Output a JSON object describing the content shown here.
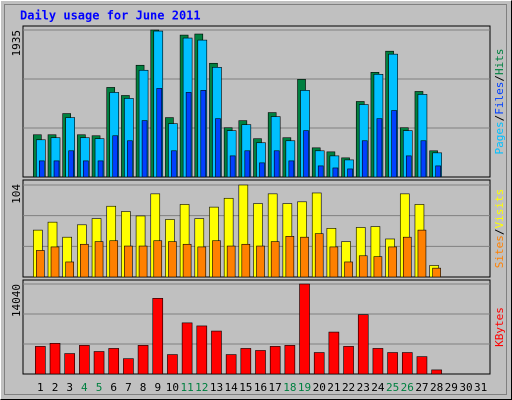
{
  "title": "Daily usage for June 2011",
  "legend_separator": "/",
  "chart_data": [
    {
      "type": "bar",
      "ylim": [
        0,
        1935
      ],
      "yticks": [
        1935
      ],
      "series": [
        {
          "name": "Hits",
          "color": "#008040",
          "values": [
            556,
            556,
            835,
            556,
            543,
            1179,
            1073,
            1471,
            1935,
            782,
            1868,
            1882,
            1497,
            649,
            742,
            504,
            848,
            517,
            1285,
            384,
            331,
            252,
            994,
            1378,
            1656,
            649,
            1126,
            345,
            0,
            0,
            0
          ]
        },
        {
          "name": "Files",
          "color": "#0040FF",
          "values": [
            212,
            212,
            345,
            212,
            212,
            543,
            477,
            742,
            1166,
            345,
            1113,
            1140,
            768,
            278,
            345,
            186,
            345,
            212,
            610,
            146,
            119,
            106,
            477,
            768,
            875,
            278,
            477,
            146,
            0,
            0,
            0
          ]
        },
        {
          "name": "Pages",
          "color": "#00C0FF",
          "values": [
            490,
            517,
            782,
            517,
            504,
            1113,
            1034,
            1405,
            1921,
            702,
            1829,
            1802,
            1444,
            610,
            689,
            451,
            795,
            477,
            1140,
            345,
            278,
            225,
            954,
            1352,
            1617,
            610,
            1087,
            318,
            0,
            0,
            0
          ]
        }
      ]
    },
    {
      "type": "bar",
      "ylim": [
        0,
        104
      ],
      "yticks": [
        104
      ],
      "series": [
        {
          "name": "Visits",
          "color": "#FFFF00",
          "values": [
            53,
            62,
            45,
            59,
            66,
            80,
            74,
            69,
            94,
            65,
            82,
            66,
            79,
            89,
            104,
            83,
            94,
            83,
            85,
            95,
            55,
            40,
            56,
            57,
            43,
            94,
            82,
            13,
            0,
            0,
            0
          ]
        },
        {
          "name": "Sites",
          "color": "#FF8000",
          "values": [
            30,
            34,
            17,
            37,
            40,
            41,
            35,
            35,
            41,
            40,
            37,
            34,
            41,
            35,
            37,
            35,
            40,
            46,
            45,
            49,
            34,
            17,
            24,
            23,
            34,
            45,
            53,
            10,
            0,
            0,
            0
          ]
        }
      ]
    },
    {
      "type": "bar",
      "ylim": [
        0,
        14040
      ],
      "yticks": [
        14040
      ],
      "series": [
        {
          "name": "KBytes",
          "color": "#FF0000",
          "values": [
            4307,
            4786,
            3190,
            4466,
            3509,
            3988,
            2393,
            4466,
            11803,
            3031,
            7975,
            7498,
            6699,
            3031,
            3988,
            3669,
            4307,
            4466,
            14040,
            3350,
            6540,
            4307,
            9251,
            3988,
            3350,
            3350,
            2711,
            638,
            0,
            0,
            0
          ]
        }
      ],
      "categories": [
        "1",
        "2",
        "3",
        "4",
        "5",
        "6",
        "7",
        "8",
        "9",
        "10",
        "11",
        "12",
        "13",
        "14",
        "15",
        "16",
        "17",
        "18",
        "19",
        "20",
        "21",
        "22",
        "23",
        "24",
        "25",
        "26",
        "27",
        "28",
        "29",
        "30",
        "31"
      ],
      "weekends": [
        "4",
        "5",
        "11",
        "12",
        "18",
        "19",
        "25",
        "26"
      ],
      "weekend_color": "#008040"
    }
  ]
}
